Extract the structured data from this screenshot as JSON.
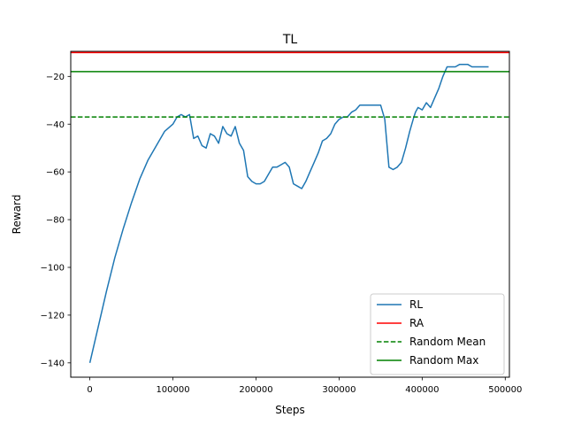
{
  "chart_data": {
    "type": "line",
    "title": "TL",
    "xlabel": "Steps",
    "ylabel": "Reward",
    "xlim": [
      -23000,
      505000
    ],
    "ylim": [
      -146,
      -9.5
    ],
    "xticks": [
      0,
      100000,
      200000,
      300000,
      400000,
      500000
    ],
    "xtick_labels": [
      "0",
      "100000",
      "200000",
      "300000",
      "400000",
      "500000"
    ],
    "yticks": [
      -140,
      -120,
      -100,
      -80,
      -60,
      -40,
      -20
    ],
    "ytick_labels": [
      "−140",
      "−120",
      "−100",
      "−80",
      "−60",
      "−40",
      "−20"
    ],
    "grid": false,
    "legend_position": "lower-right",
    "series": [
      {
        "name": "RL",
        "style": "solid",
        "color": "#1f77b4",
        "x": [
          0,
          10000,
          20000,
          30000,
          40000,
          50000,
          60000,
          70000,
          80000,
          90000,
          100000,
          105000,
          110000,
          115000,
          120000,
          125000,
          130000,
          135000,
          140000,
          145000,
          150000,
          155000,
          160000,
          165000,
          170000,
          175000,
          180000,
          185000,
          190000,
          195000,
          200000,
          205000,
          210000,
          215000,
          220000,
          225000,
          230000,
          235000,
          240000,
          245000,
          250000,
          255000,
          260000,
          265000,
          270000,
          275000,
          280000,
          285000,
          290000,
          295000,
          300000,
          305000,
          310000,
          315000,
          320000,
          325000,
          330000,
          335000,
          340000,
          345000,
          350000,
          355000,
          360000,
          365000,
          370000,
          375000,
          380000,
          385000,
          390000,
          392000,
          395000,
          400000,
          405000,
          410000,
          415000,
          420000,
          425000,
          430000,
          435000,
          440000,
          445000,
          450000,
          455000,
          460000,
          465000,
          470000,
          475000,
          480000
        ],
        "y": [
          -140,
          -125,
          -110,
          -96,
          -84,
          -73,
          -63,
          -55,
          -49,
          -43,
          -40,
          -37,
          -36,
          -37,
          -36,
          -46,
          -45,
          -49,
          -50,
          -44,
          -45,
          -48,
          -41,
          -44,
          -45,
          -41,
          -48,
          -51,
          -62,
          -64,
          -65,
          -65,
          -64,
          -61,
          -58,
          -58,
          -57,
          -56,
          -58,
          -65,
          -66,
          -67,
          -64,
          -60,
          -56,
          -52,
          -47,
          -46,
          -44,
          -40,
          -38,
          -37,
          -37,
          -35,
          -34,
          -32,
          -32,
          -32,
          -32,
          -32,
          -32,
          -38,
          -58,
          -59,
          -58,
          -56,
          -50,
          -43,
          -37,
          -35,
          -33,
          -34,
          -31,
          -33,
          -29,
          -25,
          -20,
          -16,
          -16,
          -16,
          -15,
          -15,
          -15,
          -16,
          -16,
          -16,
          -16,
          -16
        ]
      },
      {
        "name": "RA",
        "style": "solid",
        "color": "#ff0000",
        "y": -10
      },
      {
        "name": "Random Mean",
        "style": "dashed",
        "color": "#008000",
        "y": -37
      },
      {
        "name": "Random Max",
        "style": "solid",
        "color": "#008000",
        "y": -18
      }
    ]
  }
}
